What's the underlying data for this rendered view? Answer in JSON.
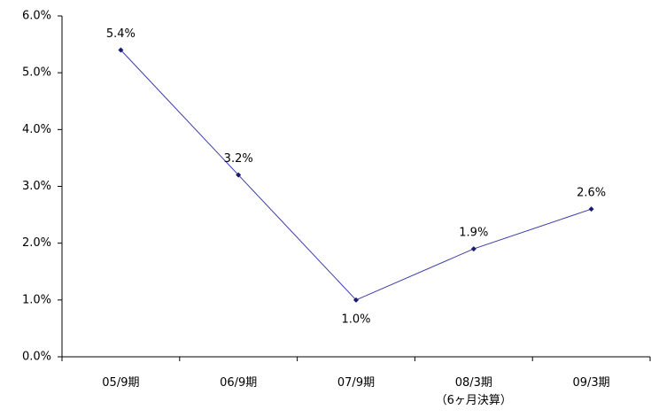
{
  "chart_data": {
    "type": "line",
    "categories": [
      "05/9期",
      "06/9期",
      "07/9期",
      "08/3期\n（6ヶ月決算）",
      "09/3期"
    ],
    "values": [
      5.4,
      3.2,
      1.0,
      1.9,
      2.6
    ],
    "value_labels": [
      "5.4%",
      "3.2%",
      "1.0%",
      "1.9%",
      "2.6%"
    ],
    "color": "#3a3aa8",
    "marker_color": "#1a1a6e",
    "ylim": [
      0,
      6
    ],
    "yticks": [
      {
        "value": 0,
        "label": "0.0%"
      },
      {
        "value": 1,
        "label": "1.0%"
      },
      {
        "value": 2,
        "label": "2.0%"
      },
      {
        "value": 3,
        "label": "3.0%"
      },
      {
        "value": 4,
        "label": "4.0%"
      },
      {
        "value": 5,
        "label": "5.0%"
      },
      {
        "value": 6,
        "label": "6.0%"
      }
    ],
    "grid": false
  }
}
